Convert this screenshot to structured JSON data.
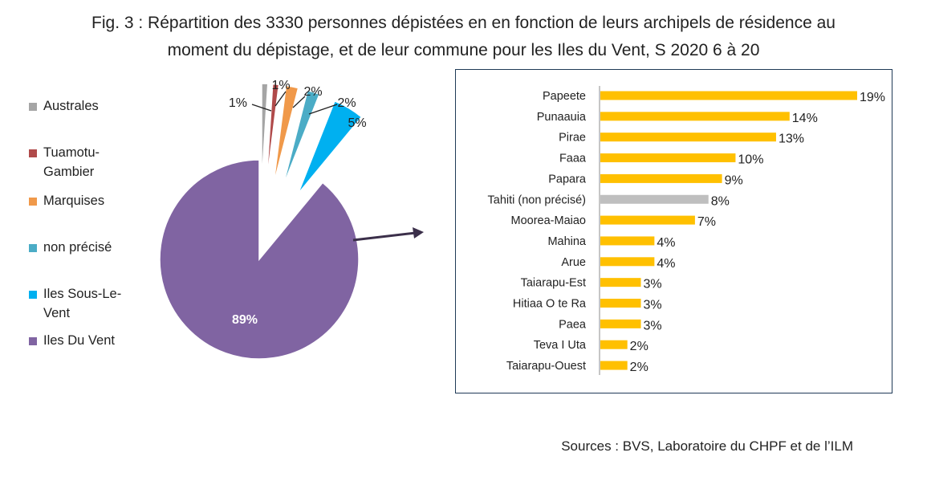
{
  "title_line1": "Fig. 3 : Répartition des 3330 personnes dépistées en en fonction de leurs archipels de résidence au",
  "title_line2": "moment du dépistage, et de leur commune pour les Iles du Vent, S 2020 6 à 20",
  "source": "Sources : BVS, Laboratoire du CHPF et de l’ILM",
  "chart_data": [
    {
      "type": "pie",
      "labels": [
        "Australes",
        "Tuamotu-Gambier",
        "Marquises",
        "non précisé",
        "Iles Sous-Le-Vent",
        "Iles Du Vent"
      ],
      "values": [
        1,
        1,
        2,
        2,
        5,
        89
      ],
      "data_labels": [
        "1%",
        "1%",
        "2%",
        "2%",
        "5%",
        "89%"
      ],
      "colors": [
        "#a5a5a5",
        "#b04a4a",
        "#f0994a",
        "#4bacc6",
        "#00b0f0",
        "#8064a2"
      ],
      "legend_position": "left"
    },
    {
      "type": "bar",
      "orientation": "horizontal",
      "categories": [
        "Papeete",
        "Punaauia",
        "Pirae",
        "Faaa",
        "Papara",
        "Tahiti (non précisé)",
        "Moorea-Maiao",
        "Mahina",
        "Arue",
        "Taiarapu-Est",
        "Hitiaa O te Ra",
        "Paea",
        "Teva I Uta",
        "Taiarapu-Ouest"
      ],
      "values": [
        19,
        14,
        13,
        10,
        9,
        8,
        7,
        4,
        4,
        3,
        3,
        3,
        2,
        2
      ],
      "data_labels": [
        "19%",
        "14%",
        "13%",
        "10%",
        "9%",
        "8%",
        "7%",
        "4%",
        "4%",
        "3%",
        "3%",
        "3%",
        "2%",
        "2%"
      ],
      "colors": [
        "#ffc000",
        "#ffc000",
        "#ffc000",
        "#ffc000",
        "#ffc000",
        "#bfbfbf",
        "#ffc000",
        "#ffc000",
        "#ffc000",
        "#ffc000",
        "#ffc000",
        "#ffc000",
        "#ffc000",
        "#ffc000"
      ],
      "xlim": [
        0,
        19
      ],
      "grid": false
    }
  ]
}
